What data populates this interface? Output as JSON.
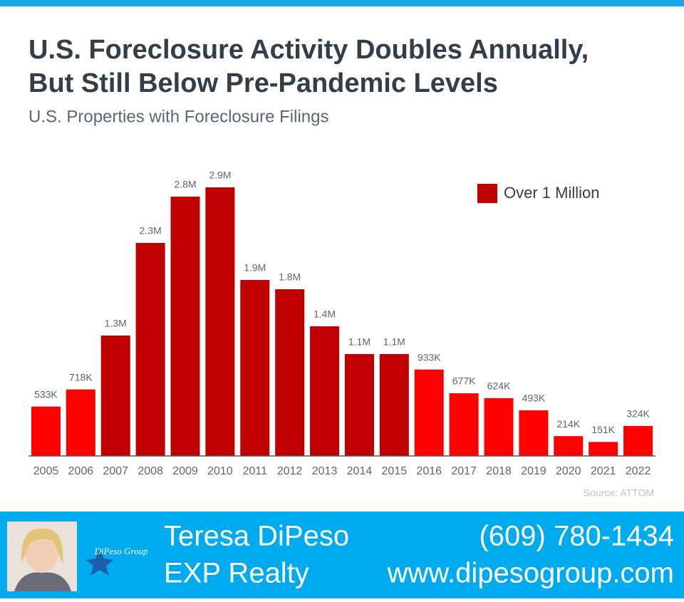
{
  "chart_data": {
    "type": "bar",
    "title": "U.S. Foreclosure Activity Doubles Annually,",
    "title_line2": "But Still Below Pre-Pandemic Levels",
    "subtitle": "U.S. Properties with Foreclosure Filings",
    "source": "Source: ATTOM",
    "categories": [
      "2005",
      "2006",
      "2007",
      "2008",
      "2009",
      "2010",
      "2011",
      "2012",
      "2013",
      "2014",
      "2015",
      "2016",
      "2017",
      "2018",
      "2019",
      "2020",
      "2021",
      "2022"
    ],
    "values": [
      533000,
      718000,
      1300000,
      2300000,
      2800000,
      2900000,
      1900000,
      1800000,
      1400000,
      1100000,
      1100000,
      933000,
      677000,
      624000,
      493000,
      214000,
      151000,
      324000
    ],
    "value_labels": [
      "533K",
      "718K",
      "1.3M",
      "2.3M",
      "2.8M",
      "2.9M",
      "1.9M",
      "1.8M",
      "1.4M",
      "1.1M",
      "1.1M",
      "933K",
      "677K",
      "624K",
      "493K",
      "214K",
      "151K",
      "324K"
    ],
    "colors": [
      "#ff0000",
      "#ff0000",
      "#c00000",
      "#c00000",
      "#c00000",
      "#c00000",
      "#c00000",
      "#c00000",
      "#c00000",
      "#c00000",
      "#c00000",
      "#ff0000",
      "#ff0000",
      "#ff0000",
      "#ff0000",
      "#ff0000",
      "#ff0000",
      "#ff0000"
    ],
    "legend": {
      "label": "Over 1 Million",
      "color": "#c00000",
      "position": "upper right"
    },
    "ylim": [
      0,
      3300000
    ]
  },
  "footer": {
    "name": "Teresa DiPeso",
    "company": "EXP Realty",
    "phone": "(609) 780-1434",
    "website": "www.dipesogroup.com",
    "logo": "DiPeso Group"
  }
}
